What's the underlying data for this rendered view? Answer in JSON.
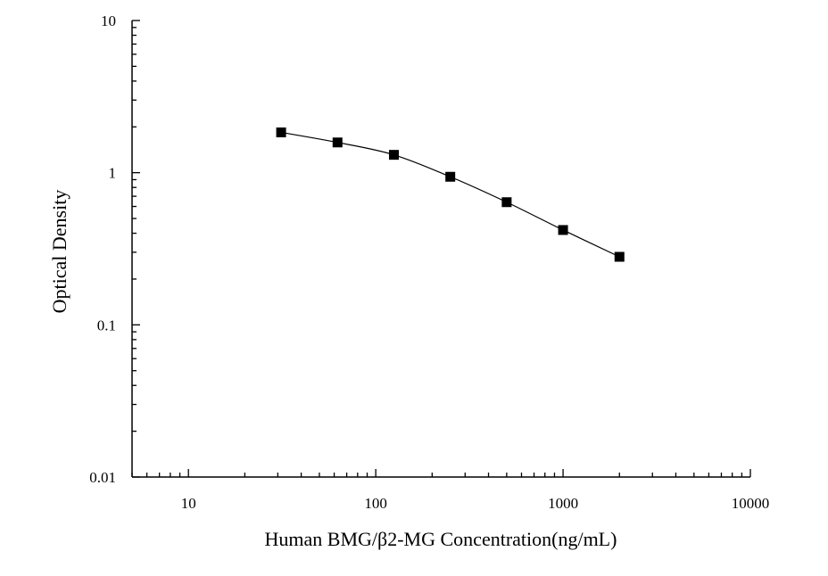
{
  "chart_data": {
    "type": "scatter",
    "title": "",
    "xlabel": "Human BMG/β2-MG Concentration(ng/mL)",
    "ylabel": "Optical Density",
    "x_scale": "log",
    "y_scale": "log",
    "xlim": [
      5,
      10000
    ],
    "ylim": [
      0.01,
      10
    ],
    "x_ticks": [
      10,
      100,
      1000,
      10000
    ],
    "x_tick_labels": [
      "10",
      "100",
      "1000",
      "10000"
    ],
    "y_ticks": [
      0.01,
      0.1,
      1,
      10
    ],
    "y_tick_labels": [
      "0.01",
      "0.1",
      "1",
      "10"
    ],
    "grid": false,
    "legend": "none",
    "series": [
      {
        "marker": "square",
        "line": "smooth",
        "color": "#000000",
        "x": [
          31.25,
          62.5,
          125,
          250,
          500,
          1000,
          2000
        ],
        "y": [
          1.84,
          1.58,
          1.31,
          0.94,
          0.64,
          0.42,
          0.28
        ]
      }
    ]
  }
}
